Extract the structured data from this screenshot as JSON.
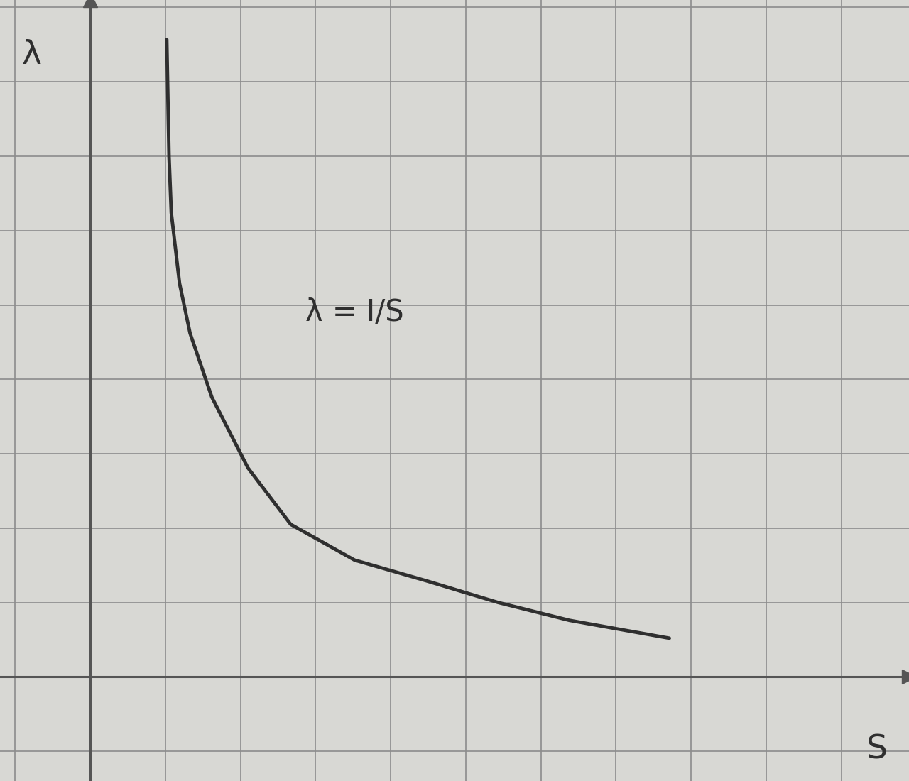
{
  "chart_data": {
    "type": "line",
    "x_label": "S",
    "y_label": "λ",
    "annotation": "λ = I/S",
    "x": [
      1.02,
      1.05,
      1.08,
      1.19,
      1.33,
      1.62,
      2.1,
      2.67,
      3.52,
      4.48,
      5.43,
      6.38,
      7.71
    ],
    "values": [
      8.57,
      7.0,
      6.24,
      5.29,
      4.62,
      3.76,
      2.81,
      2.05,
      1.57,
      1.29,
      1.0,
      0.76,
      0.52
    ],
    "color": "#2f2f2f",
    "xlim": [
      -1.2,
      10.9
    ],
    "ylim": [
      -1.4,
      9.1
    ],
    "xticks": [
      -1,
      0,
      1,
      2,
      3,
      4,
      5,
      6,
      7,
      8,
      9,
      10
    ],
    "yticks": [
      -1,
      0,
      1,
      2,
      3,
      4,
      5,
      6,
      7,
      8,
      9
    ],
    "grid": true,
    "tick_labels": false
  }
}
